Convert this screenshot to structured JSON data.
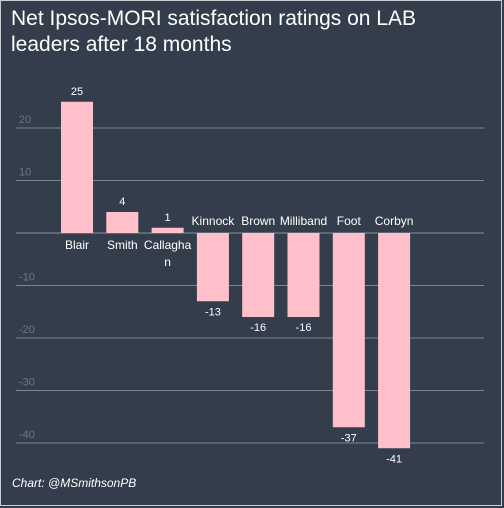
{
  "chart_data": {
    "type": "bar",
    "title": "Net Ipsos-MORI satisfaction ratings on LAB leaders after 18 months",
    "categories": [
      "Blair",
      "Smith",
      "Callaghan",
      "Kinnock",
      "Brown",
      "Milliband",
      "Foot",
      "Corbyn"
    ],
    "category_label_lines": [
      [
        "Blair"
      ],
      [
        "Smith"
      ],
      [
        "Callagha",
        "n"
      ],
      [
        "Kinnock"
      ],
      [
        "Brown"
      ],
      [
        "Milliband"
      ],
      [
        "Foot"
      ],
      [
        "Corbyn"
      ]
    ],
    "values": [
      25,
      4,
      1,
      -13,
      -16,
      -16,
      -37,
      -41
    ],
    "data_labels": [
      "25",
      "4",
      "1",
      "-13",
      "-16",
      "-16",
      "-37",
      "-41"
    ],
    "y_ticks": [
      20,
      10,
      -10,
      -20,
      -30,
      -40
    ],
    "y_tick_labels": [
      "20",
      "10",
      "-10",
      "-20",
      "-30",
      "-40"
    ],
    "ylim": [
      -41,
      25
    ],
    "grid": true,
    "bar_color": "#ffc0cb",
    "background_color": "#333d4b",
    "credit": "Chart: @MSmithsonPB"
  }
}
